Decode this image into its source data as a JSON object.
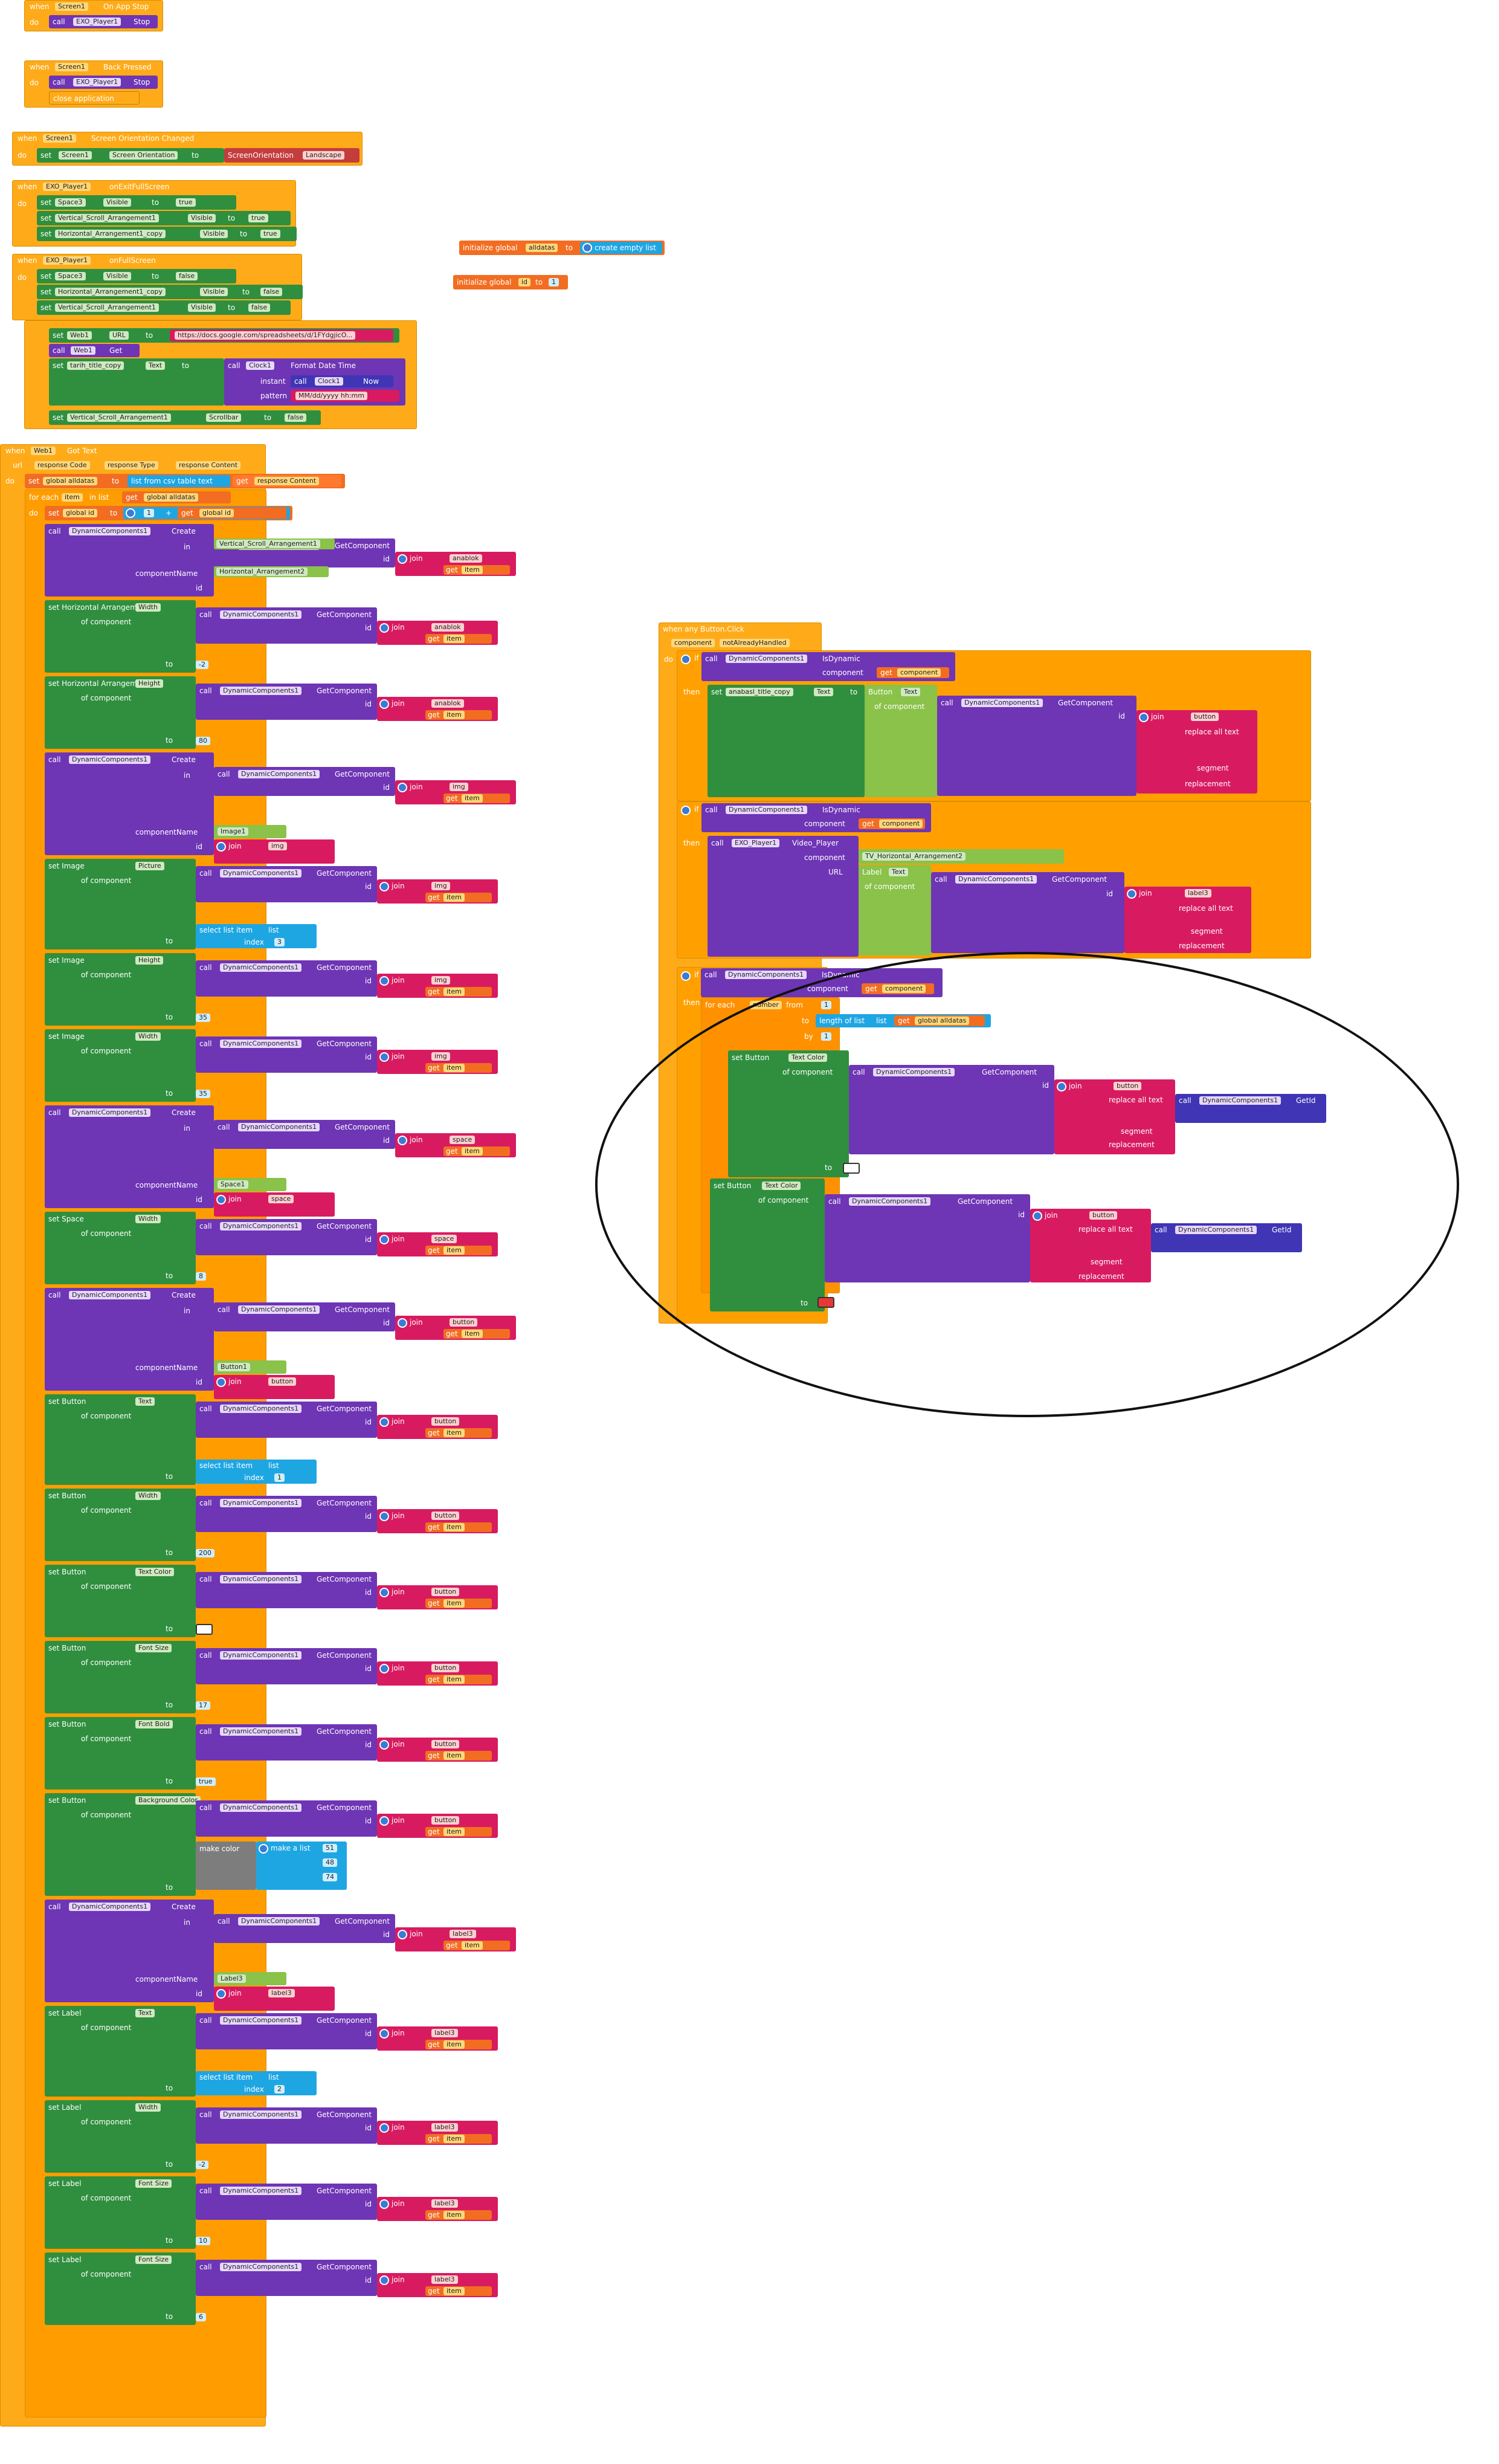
{
  "b1": {
    "when": "when",
    "comp": "Screen1",
    "event": "On App Stop",
    "do": "do",
    "call": "call",
    "player": "EXO_Player1",
    "method": "Stop"
  },
  "b2": {
    "when": "when",
    "comp": "Screen1",
    "event": "Back Pressed",
    "do": "do",
    "call": "call",
    "player": "EXO_Player1",
    "method": "Stop",
    "close": "close application"
  },
  "b3": {
    "when": "when",
    "comp": "Screen1",
    "event": "Screen Orientation Changed",
    "do": "do",
    "set": "set",
    "prop_comp": "Screen1",
    "prop": "Screen Orientation",
    "to": "to",
    "value": "ScreenOrientation",
    "value2": "Landscape"
  },
  "b4": {
    "when": "when",
    "comp": "EXO_Player1",
    "event": "onExitFullScreen",
    "do": "do",
    "rows": [
      {
        "comp": "Space3",
        "prop": "Visible",
        "value": "true"
      },
      {
        "comp": "Vertical_Scroll_Arrangement1",
        "prop": "Visible",
        "value": "true"
      },
      {
        "comp": "Horizontal_Arrangement1_copy",
        "prop": "Visible",
        "value": "true"
      }
    ]
  },
  "b5": {
    "when": "when",
    "comp": "EXO_Player1",
    "event": "onFullScreen",
    "do": "do",
    "rows": [
      {
        "comp": "Space3",
        "prop": "Visible",
        "value": "false"
      },
      {
        "comp": "Horizontal_Arrangement1_copy",
        "prop": "Visible",
        "value": "false"
      },
      {
        "comp": "Vertical_Scroll_Arrangement1",
        "prop": "Visible",
        "value": "false"
      }
    ]
  },
  "b6": {
    "set": "set",
    "web": "Web1",
    "url_prop": "URL",
    "to": "to",
    "url": "https://docs.google.com/spreadsheets/d/1FYdgjicO...",
    "call": "call",
    "get": "Get",
    "label_comp": "tarih_title_copy",
    "text_prop": "Text",
    "clock": "Clock1",
    "fmt": "Format Date Time",
    "instant": "instant",
    "now": "Now",
    "pattern": "pattern",
    "pattern_value": "MM/dd/yyyy hh:mm",
    "vsa": "Vertical_Scroll_Arrangement1",
    "scroll": "Scrollbar",
    "false": "false"
  },
  "globals": {
    "init1": "initialize global",
    "name1": "alldatas",
    "to": "to",
    "create": "create empty list",
    "init2": "initialize global",
    "name2": "id",
    "value2": "1"
  },
  "web": {
    "when": "when",
    "comp": "Web1",
    "event": "Got Text",
    "url": "url",
    "rc": "response Code",
    "rt": "response Type",
    "rcontent": "response Content",
    "do": "do",
    "set": "set",
    "alldatas": "global alldatas",
    "to": "to",
    "csv": "list from csv table text",
    "get": "get",
    "resp": "response Content",
    "foreach": "for each",
    "item": "item",
    "inlist": "in list",
    "get_all": "global alldatas",
    "setid": "global id",
    "one": "1",
    "plus": "+",
    "getid": "global id",
    "dyn": "DynamicComponents1",
    "create": "Create",
    "getcomp": "GetComponent",
    "in": "in",
    "compname": "componentName",
    "id": "id",
    "join": "join",
    "ofcomp": "of component",
    "vsa": "Vertical_Scroll_Arrangement1",
    "ha2": "Horizontal_Arrangement2",
    "anablok": "anablok",
    "getitem": "get",
    "item_word": "item",
    "ha_width": "set Horizontal Arrangement",
    "width": "Width",
    "height": "Height",
    "w_val": "-2",
    "h_val": "80",
    "image1": "Image1",
    "img": "img",
    "set_image": "set Image",
    "picture": "Picture",
    "select": "select list item",
    "list": "list",
    "index": "index",
    "idx3": "3",
    "img_h": "35",
    "img_w": "35",
    "space1": "Space1",
    "space": "space",
    "set_space": "set Space",
    "space_w": "8",
    "button1": "Button1",
    "button": "button",
    "set_button": "set Button",
    "text": "Text",
    "idx1": "1",
    "btn_w": "200",
    "textcolor": "Text Color",
    "fontsize": "Font Size",
    "fs_val": "17",
    "fontbold": "Font Bold",
    "true": "true",
    "bgcolor": "Background Color",
    "makecolor": "make color",
    "makelist": "make a list",
    "r": "51",
    "g": "48",
    "b": "74",
    "label3": "Label3",
    "label": "label3",
    "set_label": "set Label",
    "idx2": "2",
    "lbl_w": "-2",
    "lbl_fs": "10",
    "lbl_fs2": "6"
  },
  "any": {
    "when": "when any Button.Click",
    "component": "component",
    "nah": "notAlreadyHandled",
    "do": "do",
    "if": "if",
    "isdyn": "IsDynamic",
    "then": "then",
    "set": "set",
    "anabaslik": "anabasl_title_copy",
    "text": "Text",
    "to": "to",
    "button_word": "Button",
    "call": "call",
    "dyn": "DynamicComponents1",
    "getcomp": "GetComponent",
    "id": "id",
    "join": "join",
    "buttonstr": "button",
    "replaceall": "replace all text",
    "getid": "GetId",
    "segment": "segment",
    "replacement": "replacement",
    "exo": "EXO_Player1",
    "video": "Video_Player",
    "tvha": "TV_Horizontal_Arrangement2",
    "url": "URL",
    "label_word": "Label",
    "label3str": "label3",
    "for": "for each",
    "number": "number",
    "from": "from",
    "one": "1",
    "lengthof": "length of list",
    "list": "list",
    "alldatas": "global alldatas",
    "by": "by",
    "set_button": "set Button",
    "textcolor": "Text Color",
    "ofcomp": "of component",
    "get": "get",
    "comp_var": "component"
  },
  "colors": {
    "event": "#ffab19",
    "green": "#2f8f3e",
    "purple": "#6e35b5",
    "magenta": "#d81b60",
    "blue": "#1ea6e3",
    "orange": "#f26d21"
  }
}
